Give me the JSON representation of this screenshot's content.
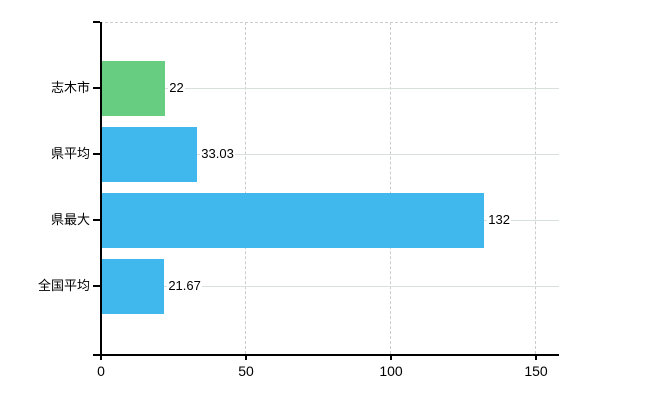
{
  "chart_data": {
    "type": "bar",
    "orientation": "horizontal",
    "title": "",
    "categories": [
      "志木市",
      "県平均",
      "県最大",
      "全国平均"
    ],
    "values": [
      22,
      33.03,
      132,
      21.67
    ],
    "value_labels": [
      "22",
      "33.03",
      "132",
      "21.67"
    ],
    "bar_colors": [
      "#67cd80",
      "#41b8ed",
      "#41b8ed",
      "#41b8ed"
    ],
    "x_axis": {
      "min": 0,
      "max": 158,
      "ticks": [
        0,
        50,
        100,
        150
      ],
      "tick_labels": [
        "0",
        "50",
        "100",
        "150"
      ]
    },
    "grid": {
      "horizontal_style": "solid",
      "vertical_style": "dashed",
      "top_border_style": "dashed"
    },
    "colors": {
      "bar_green": "#67cd80",
      "bar_blue": "#41b8ed",
      "grid_horizontal_line": "#d9e0d9",
      "grid_vertical_line": "#cccccc",
      "axis_line": "#000000",
      "label_text": "#000000",
      "background": "#ffffff"
    }
  }
}
